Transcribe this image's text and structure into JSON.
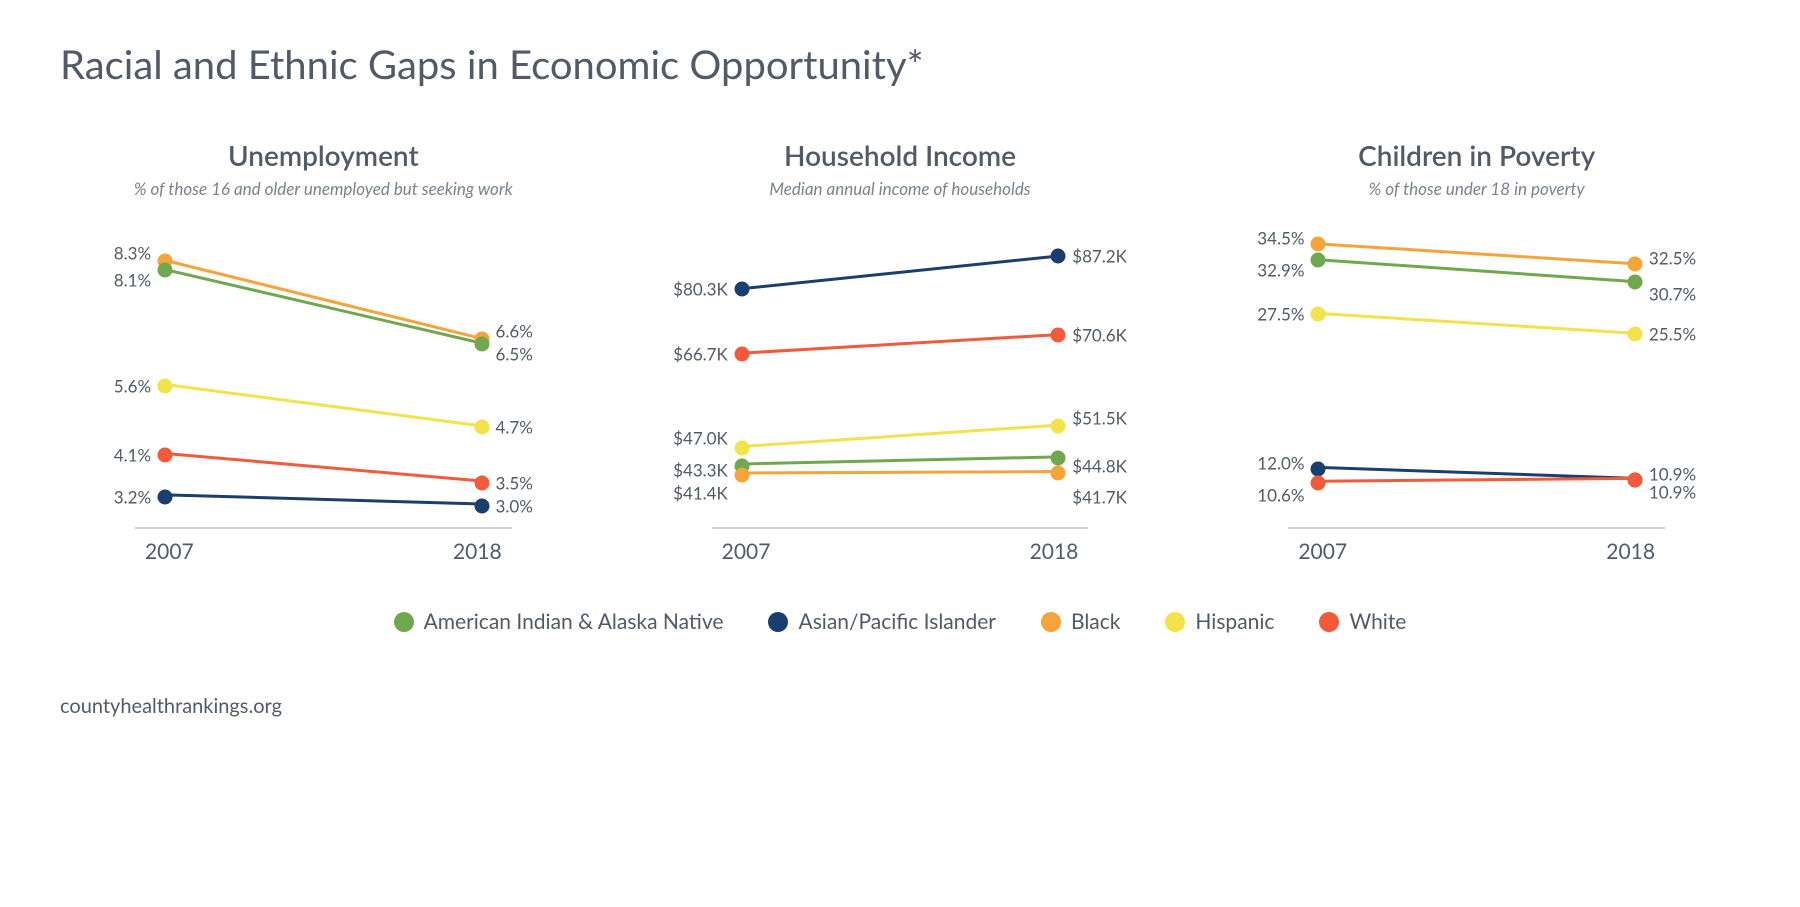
{
  "title": "Racial and Ethnic Gaps in Economic Opportunity*",
  "source": "countyhealthrankings.org",
  "legend": [
    {
      "label": "American Indian & Alaska Native",
      "color": "#6fa84f"
    },
    {
      "label": "Asian/Pacific Islander",
      "color": "#1a3f6e"
    },
    {
      "label": "Black",
      "color": "#f5a43a"
    },
    {
      "label": "Hispanic",
      "color": "#f2e24b"
    },
    {
      "label": "White",
      "color": "#f15a3b"
    }
  ],
  "x_labels": {
    "start": "2007",
    "end": "2018"
  },
  "axis_color": "#cfd3d8",
  "marker_radius": 7.5,
  "line_width": 3,
  "label_fontsize": 17,
  "title_fontsize": 28,
  "subtitle_fontsize": 17,
  "panels": [
    {
      "title": "Unemployment",
      "subtitle": "% of those 16 and older unemployed but seeking work",
      "ymin": 2.5,
      "ymax": 9.2,
      "series": [
        {
          "color": "#f5a43a",
          "start": 8.3,
          "end": 6.6,
          "start_label": "8.3%",
          "end_label": "6.6%",
          "start_nudge": -8,
          "end_nudge": -8
        },
        {
          "color": "#6fa84f",
          "start": 8.1,
          "end": 6.5,
          "start_label": "8.1%",
          "end_label": "6.5%",
          "start_nudge": 10,
          "end_nudge": 10
        },
        {
          "color": "#f2e24b",
          "start": 5.6,
          "end": 4.7,
          "start_label": "5.6%",
          "end_label": "4.7%"
        },
        {
          "color": "#f15a3b",
          "start": 4.1,
          "end": 3.5,
          "start_label": "4.1%",
          "end_label": "3.5%"
        },
        {
          "color": "#1a3f6e",
          "start": 3.2,
          "end": 3.0,
          "start_label": "3.2%",
          "end_label": "3.0%"
        }
      ]
    },
    {
      "title": "Household Income",
      "subtitle": "Median annual income of households",
      "ymin": 30,
      "ymax": 95,
      "series": [
        {
          "color": "#1a3f6e",
          "start": 80.3,
          "end": 87.2,
          "start_label": "$80.3K",
          "end_label": "$87.2K"
        },
        {
          "color": "#f15a3b",
          "start": 66.7,
          "end": 70.6,
          "start_label": "$66.7K",
          "end_label": "$70.6K"
        },
        {
          "color": "#f2e24b",
          "start": 47.0,
          "end": 51.5,
          "start_label": "$47.0K",
          "end_label": "$51.5K",
          "start_nudge": -10,
          "end_nudge": -8
        },
        {
          "color": "#6fa84f",
          "start": 43.3,
          "end": 44.8,
          "start_label": "$43.3K",
          "end_label": "$44.8K",
          "start_nudge": 4,
          "end_nudge": 8
        },
        {
          "color": "#f5a43a",
          "start": 41.4,
          "end": 41.7,
          "start_label": "$41.4K",
          "end_label": "$41.7K",
          "start_nudge": 18,
          "end_nudge": 24
        }
      ]
    },
    {
      "title": "Children in Poverty",
      "subtitle": "% of those under 18 in poverty",
      "ymin": 6,
      "ymax": 37,
      "series": [
        {
          "color": "#f5a43a",
          "start": 34.5,
          "end": 32.5,
          "start_label": "34.5%",
          "end_label": "32.5%",
          "start_nudge": -6,
          "end_nudge": -6
        },
        {
          "color": "#6fa84f",
          "start": 32.9,
          "end": 30.7,
          "start_label": "32.9%",
          "end_label": "30.7%",
          "start_nudge": 10,
          "end_nudge": 12
        },
        {
          "color": "#f2e24b",
          "start": 27.5,
          "end": 25.5,
          "start_label": "27.5%",
          "end_label": "25.5%"
        },
        {
          "color": "#1a3f6e",
          "start": 12.0,
          "end": 10.9,
          "start_label": "12.0%",
          "end_label": "10.9%",
          "start_nudge": -6,
          "end_nudge": -6
        },
        {
          "color": "#f15a3b",
          "start": 10.6,
          "end": 10.9,
          "start_label": "10.6%",
          "end_label": "10.9%",
          "start_nudge": 12,
          "end_nudge": 12
        }
      ]
    }
  ]
}
